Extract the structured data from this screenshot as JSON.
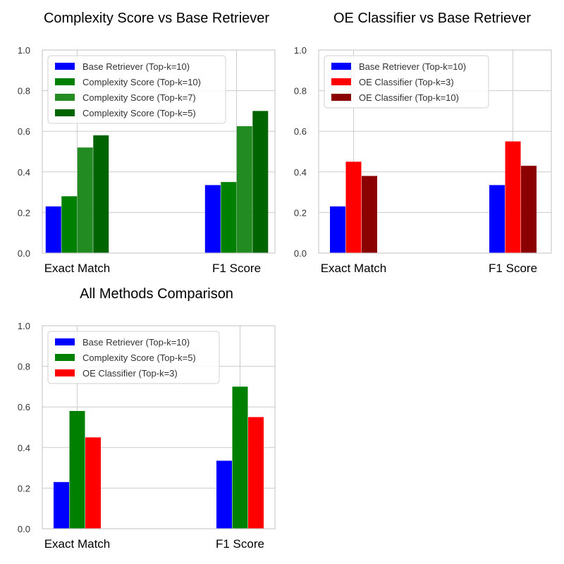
{
  "chart_data": [
    {
      "type": "bar",
      "title": "Complexity Score vs Base Retriever",
      "xlabel": "",
      "ylabel": "",
      "ylim": [
        0,
        1.0
      ],
      "yticks": [
        "0.0",
        "0.2",
        "0.4",
        "0.6",
        "0.8",
        "1.0"
      ],
      "categories": [
        "Exact Match",
        "F1 Score"
      ],
      "grid": true,
      "legend_position": "top-left",
      "series": [
        {
          "name": "Base Retriever (Top-k=10)",
          "color": "#0000ff",
          "values": [
            0.23,
            0.335
          ]
        },
        {
          "name": "Complexity Score (Top-k=10)",
          "color": "#008000",
          "values": [
            0.28,
            0.35
          ]
        },
        {
          "name": "Complexity Score (Top-k=7)",
          "color": "#228b22",
          "values": [
            0.52,
            0.625
          ]
        },
        {
          "name": "Complexity Score (Top-k=5)",
          "color": "#006400",
          "values": [
            0.58,
            0.7
          ]
        }
      ]
    },
    {
      "type": "bar",
      "title": "OE Classifier vs Base Retriever",
      "xlabel": "",
      "ylabel": "",
      "ylim": [
        0,
        1.0
      ],
      "yticks": [
        "0.0",
        "0.2",
        "0.4",
        "0.6",
        "0.8",
        "1.0"
      ],
      "categories": [
        "Exact Match",
        "F1 Score"
      ],
      "grid": true,
      "legend_position": "top-left",
      "series": [
        {
          "name": "Base Retriever (Top-k=10)",
          "color": "#0000ff",
          "values": [
            0.23,
            0.335
          ]
        },
        {
          "name": "OE Classifier (Top-k=3)",
          "color": "#ff0000",
          "values": [
            0.45,
            0.55
          ]
        },
        {
          "name": "OE Classifier (Top-k=10)",
          "color": "#8b0000",
          "values": [
            0.38,
            0.43
          ]
        }
      ]
    },
    {
      "type": "bar",
      "title": "All Methods Comparison",
      "xlabel": "",
      "ylabel": "",
      "ylim": [
        0,
        1.0
      ],
      "yticks": [
        "0.0",
        "0.2",
        "0.4",
        "0.6",
        "0.8",
        "1.0"
      ],
      "categories": [
        "Exact Match",
        "F1 Score"
      ],
      "grid": true,
      "legend_position": "top-left",
      "series": [
        {
          "name": "Base Retriever (Top-k=10)",
          "color": "#0000ff",
          "values": [
            0.23,
            0.335
          ]
        },
        {
          "name": "Complexity Score (Top-k=5)",
          "color": "#008000",
          "values": [
            0.58,
            0.7
          ]
        },
        {
          "name": "OE Classifier (Top-k=3)",
          "color": "#ff0000",
          "values": [
            0.45,
            0.55
          ]
        }
      ]
    }
  ]
}
